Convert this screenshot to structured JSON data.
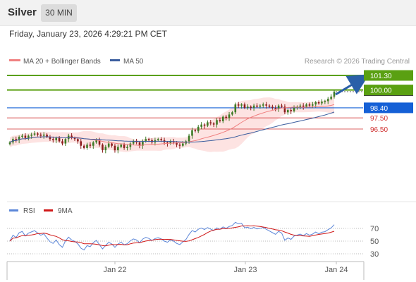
{
  "header": {
    "title": "Silver",
    "timeframe": "30 MIN",
    "timestamp": "Friday, January 23, 2026 4:29:21 PM CET"
  },
  "legend": {
    "bb_label": "MA 20 + Bollinger Bands",
    "ma50_label": "MA 50",
    "credit": "Research © 2026 Trading Central"
  },
  "rsi_legend": {
    "rsi_label": "RSI",
    "ma_label": "9MA"
  },
  "colors": {
    "bullish": "#3d7a25",
    "bearish": "#8c1c1c",
    "band_fill": "#fde3e2",
    "ma20": "#f08080",
    "ma50": "#3a5d9e",
    "resistance": "#5aa012",
    "pivot": "#1560d6",
    "support": "#d03030",
    "arrow": "#2a5fa8",
    "rsi_line": "#5b86d8",
    "rsi_ma": "#d01818"
  },
  "chart_data": [
    {
      "type": "candlestick",
      "title": "Silver",
      "timeframe": "30 MIN",
      "x_labels": [
        "Jan 22",
        "Jan 23",
        "Jan 24"
      ],
      "ylim": [
        94.3,
        102.0
      ],
      "series": [
        {
          "name": "MA 20 + Bollinger Bands"
        },
        {
          "name": "MA 50"
        }
      ],
      "levels": [
        {
          "kind": "resistance",
          "value": 101.3,
          "label": "101.30"
        },
        {
          "kind": "resistance",
          "value": 100.0,
          "label": "100.00"
        },
        {
          "kind": "pivot",
          "value": 98.4,
          "label": "98.40"
        },
        {
          "kind": "support",
          "value": 97.5,
          "label": "97.50"
        },
        {
          "kind": "support",
          "value": 96.5,
          "label": "96.50"
        }
      ],
      "last_price": 99.85,
      "forecast": {
        "direction": "up",
        "target": 101.3
      },
      "closes": [
        95.3,
        95.6,
        95.5,
        95.8,
        95.9,
        95.7,
        95.9,
        96.0,
        96.1,
        96.0,
        95.9,
        96.0,
        95.8,
        95.6,
        95.5,
        95.7,
        95.4,
        95.2,
        95.6,
        95.9,
        95.7,
        95.6,
        95.4,
        95.0,
        94.8,
        95.1,
        95.0,
        95.3,
        95.5,
        95.1,
        94.6,
        94.9,
        95.2,
        95.0,
        94.6,
        94.9,
        95.1,
        94.8,
        94.9,
        95.2,
        95.4,
        95.3,
        95.0,
        95.4,
        95.6,
        95.5,
        95.3,
        95.5,
        95.6,
        95.5,
        95.3,
        95.2,
        95.4,
        95.3,
        95.1,
        95.0,
        95.2,
        95.4,
        95.9,
        96.4,
        96.3,
        96.7,
        96.9,
        96.8,
        97.1,
        97.0,
        96.9,
        97.3,
        97.2,
        97.6,
        97.5,
        97.8,
        98.0,
        98.7,
        98.6,
        98.7,
        98.4,
        98.5,
        98.4,
        98.6,
        98.5,
        98.6,
        98.7,
        98.6,
        98.5,
        98.4,
        98.3,
        98.6,
        98.5,
        98.0,
        98.2,
        98.1,
        98.4,
        98.5,
        98.6,
        98.5,
        98.7,
        98.6,
        98.7,
        98.9,
        98.8,
        98.95,
        99.0,
        99.2,
        99.4,
        99.85
      ]
    },
    {
      "type": "line",
      "title": "RSI",
      "series": [
        {
          "name": "RSI"
        },
        {
          "name": "9MA"
        }
      ],
      "y_ticks": [
        70,
        50,
        30
      ],
      "ylim": [
        20,
        84
      ]
    }
  ]
}
